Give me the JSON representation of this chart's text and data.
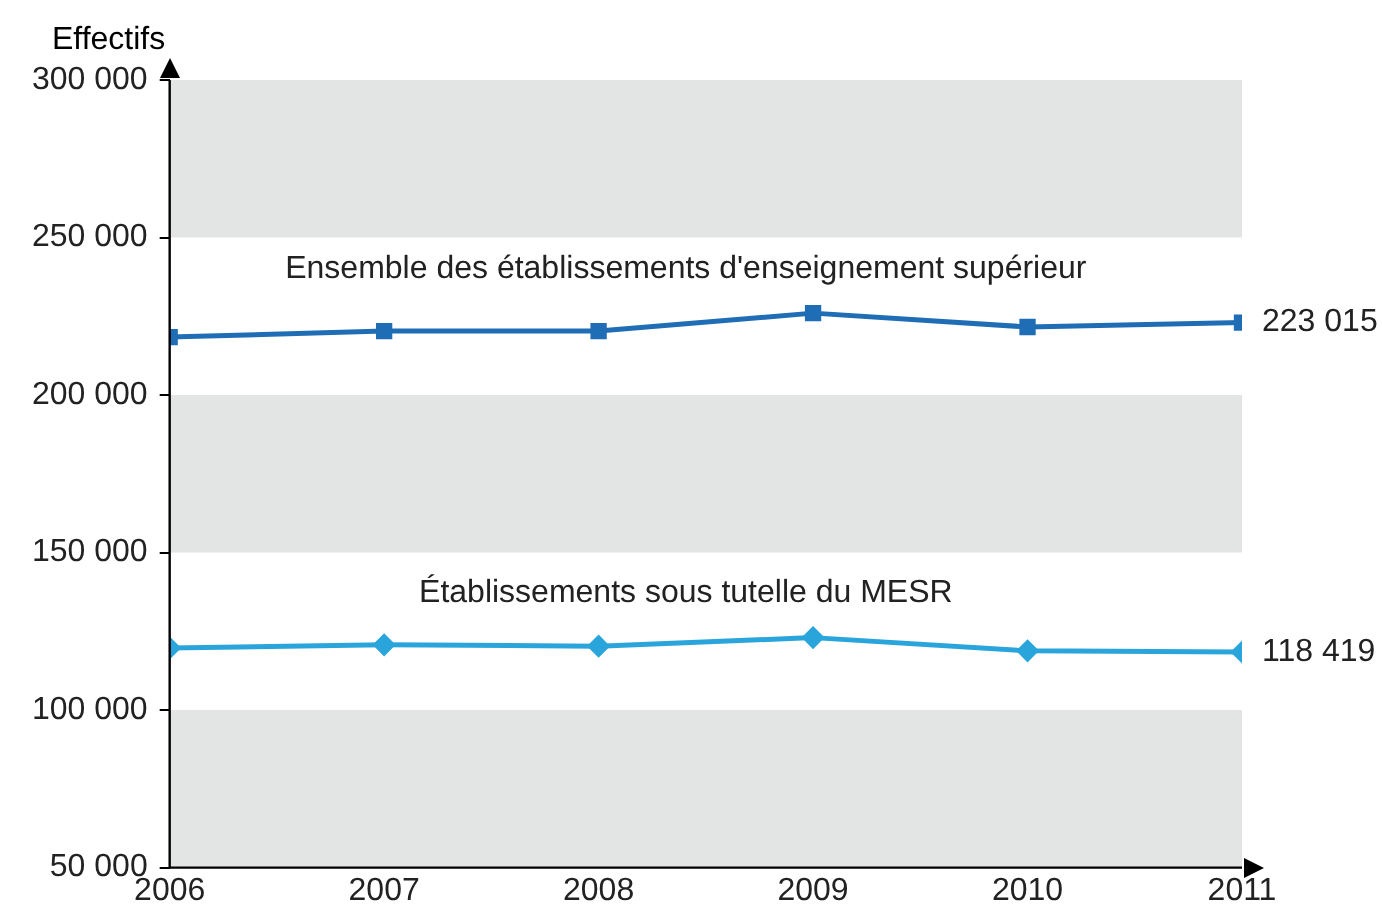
{
  "chart_data": {
    "type": "line",
    "ylabel": "Effectifs",
    "x": [
      2006,
      2007,
      2008,
      2009,
      2010,
      2011
    ],
    "series": [
      {
        "name": "Ensemble des établissements d'enseignement supérieur",
        "color": "#1f6db5",
        "marker": "square",
        "values": [
          218400,
          220300,
          220300,
          226000,
          221600,
          223015
        ],
        "value_labels": [
          null,
          null,
          null,
          null,
          null,
          "223 015"
        ]
      },
      {
        "name": "Établissements sous tutelle du MESR",
        "color": "#2aa5dc",
        "marker": "diamond",
        "values": [
          119700,
          120700,
          120300,
          123000,
          118800,
          118419
        ],
        "value_labels": [
          null,
          null,
          null,
          null,
          null,
          "118 419"
        ]
      }
    ],
    "xlim": [
      2006,
      2011
    ],
    "xticks": [
      2006,
      2007,
      2008,
      2009,
      2010,
      2011
    ],
    "ylim": [
      50000,
      300000
    ],
    "yticks": [
      {
        "value": 50000,
        "label": "50 000"
      },
      {
        "value": 100000,
        "label": "100 000"
      },
      {
        "value": 150000,
        "label": "150 000"
      },
      {
        "value": 200000,
        "label": "200 000"
      },
      {
        "value": 250000,
        "label": "250 000"
      },
      {
        "value": 300000,
        "label": "300 000"
      }
    ],
    "bands": [
      {
        "axis": "y",
        "from": 250000,
        "to": 300000,
        "color": "#e3e4e4"
      },
      {
        "axis": "y",
        "from": 150000,
        "to": 200000,
        "color": "#e3e4e4"
      },
      {
        "axis": "y",
        "from": 50000,
        "to": 100000,
        "color": "#e3e4e4"
      }
    ],
    "grid": false,
    "legend": false
  }
}
